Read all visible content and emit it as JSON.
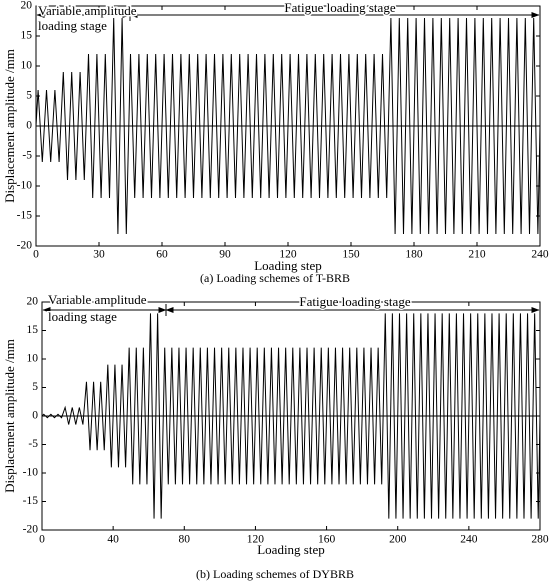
{
  "chart_data": [
    {
      "type": "line",
      "caption": "(a) Loading schemes of T-BRB",
      "x_label": "Loading step",
      "y_label": "Displacement amplitude /mm",
      "annotations": [
        {
          "text": [
            "Variable amplitude",
            "loading stage"
          ]
        },
        {
          "text": [
            "Fatigue loading stage"
          ]
        }
      ],
      "color": "#000000",
      "x": [
        0,
        1,
        3,
        5,
        7,
        9,
        11,
        13,
        15,
        17,
        19,
        21,
        23,
        25,
        27,
        29,
        31,
        33,
        35,
        37,
        39,
        41,
        43,
        45,
        47,
        49,
        51,
        53,
        55,
        57,
        59,
        61,
        63,
        65,
        67,
        69,
        71,
        73,
        75,
        77,
        79,
        81,
        83,
        85,
        87,
        89,
        91,
        93,
        95,
        97,
        99,
        101,
        103,
        105,
        107,
        109,
        111,
        113,
        115,
        117,
        119,
        121,
        123,
        125,
        127,
        129,
        131,
        133,
        135,
        137,
        139,
        141,
        143,
        145,
        147,
        149,
        151,
        153,
        155,
        157,
        159,
        161,
        163,
        165,
        167,
        169,
        171,
        173,
        175,
        177,
        179,
        181,
        183,
        185,
        187,
        189,
        191,
        193,
        195,
        197,
        199,
        201,
        203,
        205,
        207,
        209,
        211,
        213,
        215,
        217,
        219,
        221,
        223,
        225,
        227,
        229,
        231,
        233,
        235,
        237,
        239,
        240
      ],
      "values": [
        0,
        6,
        -6,
        6,
        -6,
        6,
        -6,
        9,
        -9,
        9,
        -9,
        9,
        -9,
        12,
        -12,
        12,
        -12,
        12,
        -12,
        18,
        -18,
        18,
        -18,
        12,
        -12,
        12,
        -12,
        12,
        -12,
        12,
        -12,
        12,
        -12,
        12,
        -12,
        12,
        -12,
        12,
        -12,
        12,
        -12,
        12,
        -12,
        12,
        -12,
        12,
        -12,
        12,
        -12,
        12,
        -12,
        12,
        -12,
        12,
        -12,
        12,
        -12,
        12,
        -12,
        12,
        -12,
        12,
        -12,
        12,
        -12,
        12,
        -12,
        12,
        -12,
        12,
        -12,
        12,
        -12,
        12,
        -12,
        12,
        -12,
        12,
        -12,
        12,
        -12,
        12,
        -12,
        12,
        -12,
        18,
        -18,
        18,
        -18,
        18,
        -18,
        18,
        -18,
        18,
        -18,
        18,
        -18,
        18,
        -18,
        18,
        -18,
        18,
        -18,
        18,
        -18,
        18,
        -18,
        18,
        -18,
        18,
        -18,
        18,
        -18,
        18,
        -18,
        18,
        -18,
        18,
        -18,
        18,
        -18,
        0
      ],
      "xlim": [
        0,
        240
      ],
      "xticks": [
        0,
        30,
        60,
        90,
        120,
        150,
        180,
        210,
        240
      ],
      "ylim": [
        -20,
        20
      ],
      "yticks": [
        -20,
        -15,
        -10,
        -5,
        0,
        5,
        10,
        15,
        20
      ]
    },
    {
      "type": "line",
      "caption": "(b) Loading schemes of DYBRB",
      "x_label": "Loading step",
      "y_label": "Displacement amplitude /mm",
      "annotations": [
        {
          "text": [
            "Variable amplitude",
            "loading stage"
          ]
        },
        {
          "text": [
            "Fatigue loading stage"
          ]
        }
      ],
      "color": "#000000",
      "x": [
        0,
        1,
        3,
        5,
        7,
        9,
        11,
        13,
        15,
        17,
        19,
        21,
        23,
        25,
        27,
        29,
        31,
        33,
        35,
        37,
        39,
        41,
        43,
        45,
        47,
        49,
        51,
        53,
        55,
        57,
        59,
        61,
        63,
        65,
        67,
        69,
        71,
        73,
        75,
        77,
        79,
        81,
        83,
        85,
        87,
        89,
        91,
        93,
        95,
        97,
        99,
        101,
        103,
        105,
        107,
        109,
        111,
        113,
        115,
        117,
        119,
        121,
        123,
        125,
        127,
        129,
        131,
        133,
        135,
        137,
        139,
        141,
        143,
        145,
        147,
        149,
        151,
        153,
        155,
        157,
        159,
        161,
        163,
        165,
        167,
        169,
        171,
        173,
        175,
        177,
        179,
        181,
        183,
        185,
        187,
        189,
        191,
        193,
        195,
        197,
        199,
        201,
        203,
        205,
        207,
        209,
        211,
        213,
        215,
        217,
        219,
        221,
        223,
        225,
        227,
        229,
        231,
        233,
        235,
        237,
        239,
        241,
        243,
        245,
        247,
        249,
        251,
        253,
        255,
        257,
        259,
        261,
        263,
        265,
        267,
        269,
        271,
        273,
        275,
        277,
        279,
        280
      ],
      "values": [
        0,
        0.3,
        -0.3,
        0.3,
        -0.3,
        0.3,
        -0.3,
        1.5,
        -1.5,
        1.5,
        -1.5,
        1.5,
        -1.5,
        6,
        -6,
        6,
        -6,
        6,
        -6,
        9,
        -9,
        9,
        -9,
        9,
        -9,
        12,
        -12,
        12,
        -12,
        12,
        -12,
        18,
        -18,
        18,
        -18,
        12,
        -12,
        12,
        -12,
        12,
        -12,
        12,
        -12,
        12,
        -12,
        12,
        -12,
        12,
        -12,
        12,
        -12,
        12,
        -12,
        12,
        -12,
        12,
        -12,
        12,
        -12,
        12,
        -12,
        12,
        -12,
        12,
        -12,
        12,
        -12,
        12,
        -12,
        12,
        -12,
        12,
        -12,
        12,
        -12,
        12,
        -12,
        12,
        -12,
        12,
        -12,
        12,
        -12,
        12,
        -12,
        12,
        -12,
        12,
        -12,
        12,
        -12,
        12,
        -12,
        12,
        -12,
        12,
        -12,
        18,
        -18,
        18,
        -18,
        18,
        -18,
        18,
        -18,
        18,
        -18,
        18,
        -18,
        18,
        -18,
        18,
        -18,
        18,
        -18,
        18,
        -18,
        18,
        -18,
        18,
        -18,
        18,
        -18,
        18,
        -18,
        18,
        -18,
        18,
        -18,
        18,
        -18,
        18,
        -18,
        18,
        -18,
        18,
        -18,
        18,
        -18,
        18,
        -18,
        0
      ],
      "xlim": [
        0,
        280
      ],
      "xticks": [
        0,
        40,
        80,
        120,
        160,
        200,
        240,
        280
      ],
      "ylim": [
        -20,
        20
      ],
      "yticks": [
        -20,
        -15,
        -10,
        -5,
        0,
        5,
        10,
        15,
        20
      ]
    }
  ]
}
